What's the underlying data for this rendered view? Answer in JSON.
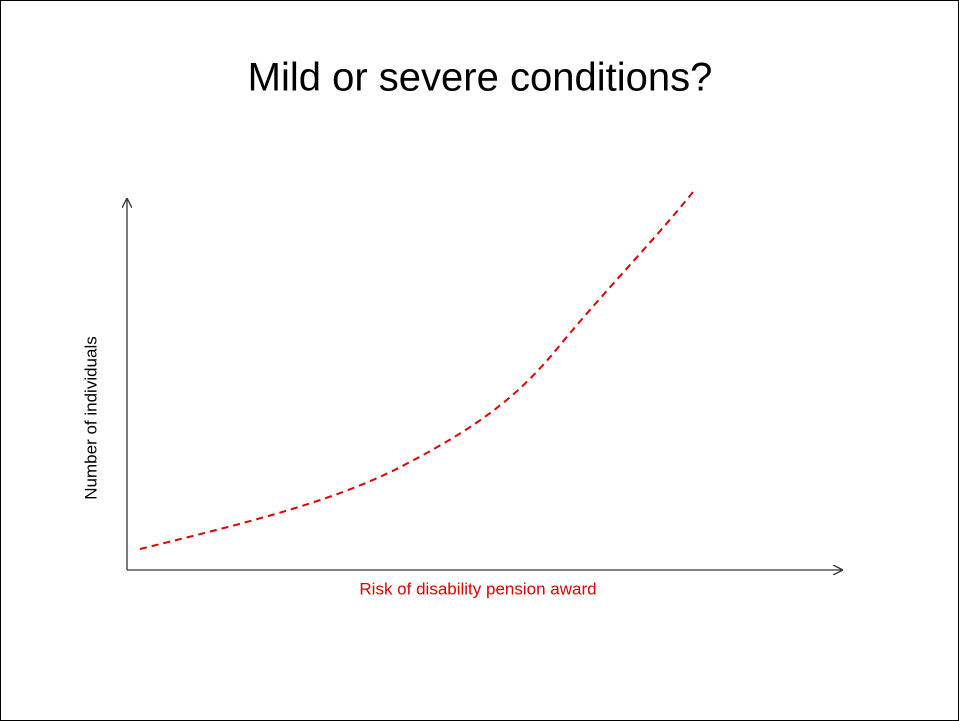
{
  "title": "Mild or severe conditions?",
  "y_axis_label": "Number of individuals",
  "x_axis_label": "Risk of disability pension award"
}
